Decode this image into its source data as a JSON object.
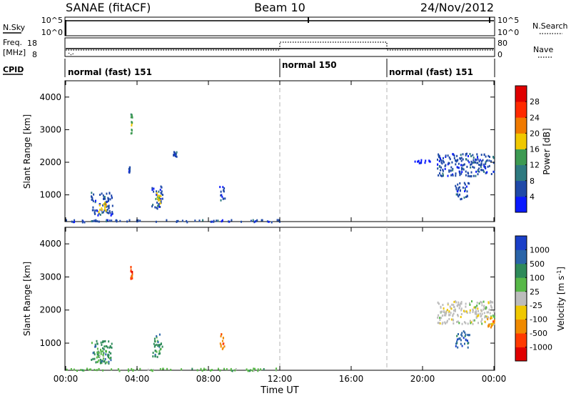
{
  "header": {
    "station": "SANAE (fitACF)",
    "beam": "Beam 10",
    "date": "24/Nov/2012"
  },
  "summary_panels": {
    "nsky_label": "N.Sky",
    "nsky_ticks": [
      "10^5",
      "10^0"
    ],
    "nsearch_label": "N.Search",
    "nsearch_ticks": [
      "10^5",
      "10^0"
    ],
    "freq_label_line1": "Freq.",
    "freq_label_line2": "[MHz]",
    "freq_ticks": [
      "18",
      "8"
    ],
    "nave_label": "Nave",
    "nave_ticks": [
      "80",
      "0"
    ],
    "cpid_label": "CPID"
  },
  "cpid_segments": [
    {
      "start_hour": 0,
      "end_hour": 12,
      "label": "normal (fast) 151"
    },
    {
      "start_hour": 12,
      "end_hour": 18,
      "label": "normal 150"
    },
    {
      "start_hour": 18,
      "end_hour": 24,
      "label": "normal (fast) 151"
    }
  ],
  "chart_data": [
    {
      "type": "heatmap",
      "parameter": "Power",
      "ylabel": "Slant Range [km]",
      "xlabel": "",
      "ylim": [
        180,
        4500
      ],
      "xlim": [
        0,
        24
      ],
      "yticks": [
        1000,
        2000,
        3000,
        4000
      ],
      "colorbar_label": "Power [dB]",
      "colorbar_ticks": [
        "4",
        "8",
        "12",
        "16",
        "20",
        "24",
        "28"
      ],
      "colorbar_colors": [
        "#0a1aff",
        "#1f49a8",
        "#2e7a80",
        "#3d9a52",
        "#f0c800",
        "#f07a00",
        "#ff2a00",
        "#e00000"
      ],
      "echo_clusters": [
        {
          "t0": 0.0,
          "t1": 12.0,
          "r0": 190,
          "r1": 260,
          "level": 1
        },
        {
          "t0": 1.4,
          "t1": 2.6,
          "r0": 400,
          "r1": 1100,
          "level": 1
        },
        {
          "t0": 1.7,
          "t1": 2.3,
          "r0": 500,
          "r1": 800,
          "level": 4
        },
        {
          "t0": 3.5,
          "t1": 3.6,
          "r0": 1700,
          "r1": 1900,
          "level": 1
        },
        {
          "t0": 3.6,
          "t1": 3.7,
          "r0": 2900,
          "r1": 3500,
          "level": 3
        },
        {
          "t0": 4.8,
          "t1": 5.4,
          "r0": 600,
          "r1": 1300,
          "level": 1
        },
        {
          "t0": 5.0,
          "t1": 5.3,
          "r0": 700,
          "r1": 1100,
          "level": 4
        },
        {
          "t0": 6.0,
          "t1": 6.2,
          "r0": 2200,
          "r1": 2350,
          "level": 1
        },
        {
          "t0": 8.6,
          "t1": 8.9,
          "r0": 850,
          "r1": 1300,
          "level": 1
        },
        {
          "t0": 20.8,
          "t1": 24.0,
          "r0": 1600,
          "r1": 2300,
          "level": 1
        },
        {
          "t0": 21.8,
          "t1": 22.6,
          "r0": 900,
          "r1": 1400,
          "level": 1
        },
        {
          "t0": 19.5,
          "t1": 20.5,
          "r0": 2000,
          "r1": 2100,
          "level": 0
        }
      ]
    },
    {
      "type": "heatmap",
      "parameter": "Velocity",
      "ylabel": "Slant Range [km]",
      "xlabel": "Time UT",
      "ylim": [
        180,
        4500
      ],
      "xlim": [
        0,
        24
      ],
      "yticks": [
        1000,
        2000,
        3000,
        4000
      ],
      "xticks": [
        "00:00",
        "04:00",
        "08:00",
        "12:00",
        "16:00",
        "20:00",
        "00:00"
      ],
      "colorbar_label_main": "Velocity",
      "colorbar_label_units": "[m s",
      "colorbar_label_exp": "-1",
      "colorbar_label_close": "]",
      "colorbar_ticks": [
        "1000",
        "500",
        "100",
        "25",
        "-25",
        "-100",
        "-500",
        "-1000"
      ],
      "colorbar_colors": [
        "#1a3fc8",
        "#2a64a8",
        "#2e8a5a",
        "#58b848",
        "#bcbcbc",
        "#f0c800",
        "#f08a00",
        "#ff3a00",
        "#e00000"
      ],
      "echo_clusters": [
        {
          "t0": 0.0,
          "t1": 12.0,
          "r0": 190,
          "r1": 260,
          "level": 3
        },
        {
          "t0": 1.4,
          "t1": 2.6,
          "r0": 400,
          "r1": 1100,
          "level": 2
        },
        {
          "t0": 1.7,
          "t1": 2.3,
          "r0": 500,
          "r1": 800,
          "level": 3
        },
        {
          "t0": 3.6,
          "t1": 3.7,
          "r0": 2900,
          "r1": 3500,
          "level": 7
        },
        {
          "t0": 4.8,
          "t1": 5.4,
          "r0": 600,
          "r1": 1300,
          "level": 2
        },
        {
          "t0": 8.6,
          "t1": 8.9,
          "r0": 850,
          "r1": 1300,
          "level": 6
        },
        {
          "t0": 20.8,
          "t1": 24.0,
          "r0": 1600,
          "r1": 2300,
          "level": 4
        },
        {
          "t0": 23.6,
          "t1": 24.0,
          "r0": 1500,
          "r1": 1800,
          "level": 6
        },
        {
          "t0": 21.8,
          "t1": 22.6,
          "r0": 900,
          "r1": 1400,
          "level": 1
        }
      ]
    }
  ]
}
